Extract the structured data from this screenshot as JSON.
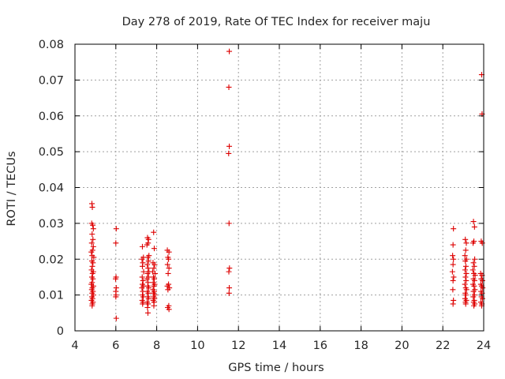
{
  "chart_data": {
    "type": "scatter",
    "title": "Day 278 of 2019, Rate Of TEC Index for receiver maju",
    "xlabel": "GPS time / hours",
    "ylabel": "ROTI / TECUs",
    "xlim": [
      4,
      24
    ],
    "ylim": [
      0,
      0.08
    ],
    "x_ticks": [
      4,
      6,
      8,
      10,
      12,
      14,
      16,
      18,
      20,
      22,
      24
    ],
    "y_ticks": [
      0,
      0.01,
      0.02,
      0.03,
      0.04,
      0.05,
      0.06,
      0.07,
      0.08
    ],
    "x_tick_labels": [
      "4",
      "6",
      "8",
      "10",
      "12",
      "14",
      "16",
      "18",
      "20",
      "22",
      "24"
    ],
    "y_tick_labels": [
      "0",
      "0.01",
      "0.02",
      "0.03",
      "0.04",
      "0.05",
      "0.06",
      "0.07",
      "0.08"
    ],
    "grid": true,
    "marker": "+",
    "color": "#dd0000",
    "series": [
      {
        "name": "ROTI",
        "points": [
          [
            4.83,
            0.0355
          ],
          [
            4.85,
            0.0345
          ],
          [
            4.82,
            0.03
          ],
          [
            4.87,
            0.0295
          ],
          [
            4.9,
            0.0285
          ],
          [
            4.84,
            0.027
          ],
          [
            4.88,
            0.0255
          ],
          [
            4.82,
            0.0245
          ],
          [
            4.9,
            0.0235
          ],
          [
            4.86,
            0.0225
          ],
          [
            4.8,
            0.022
          ],
          [
            4.84,
            0.021
          ],
          [
            4.92,
            0.0205
          ],
          [
            4.83,
            0.0195
          ],
          [
            4.88,
            0.019
          ],
          [
            4.85,
            0.018
          ],
          [
            4.81,
            0.017
          ],
          [
            4.9,
            0.0165
          ],
          [
            4.86,
            0.016
          ],
          [
            4.83,
            0.015
          ],
          [
            4.88,
            0.0145
          ],
          [
            4.84,
            0.0135
          ],
          [
            4.8,
            0.013
          ],
          [
            4.9,
            0.0125
          ],
          [
            4.85,
            0.012
          ],
          [
            4.82,
            0.0115
          ],
          [
            4.88,
            0.011
          ],
          [
            4.84,
            0.0105
          ],
          [
            4.9,
            0.01
          ],
          [
            4.83,
            0.0095
          ],
          [
            4.86,
            0.009
          ],
          [
            4.81,
            0.0085
          ],
          [
            4.88,
            0.008
          ],
          [
            4.85,
            0.0075
          ],
          [
            4.84,
            0.007
          ],
          [
            6.02,
            0.0285
          ],
          [
            6.0,
            0.0245
          ],
          [
            6.01,
            0.015
          ],
          [
            5.99,
            0.0145
          ],
          [
            6.02,
            0.012
          ],
          [
            6.0,
            0.011
          ],
          [
            6.01,
            0.01
          ],
          [
            6.0,
            0.0095
          ],
          [
            6.02,
            0.0035
          ],
          [
            7.3,
            0.0235
          ],
          [
            7.35,
            0.0205
          ],
          [
            7.28,
            0.02
          ],
          [
            7.32,
            0.019
          ],
          [
            7.3,
            0.018
          ],
          [
            7.36,
            0.0165
          ],
          [
            7.29,
            0.015
          ],
          [
            7.33,
            0.014
          ],
          [
            7.3,
            0.013
          ],
          [
            7.35,
            0.0125
          ],
          [
            7.28,
            0.012
          ],
          [
            7.32,
            0.011
          ],
          [
            7.3,
            0.01
          ],
          [
            7.34,
            0.0095
          ],
          [
            7.29,
            0.0085
          ],
          [
            7.33,
            0.008
          ],
          [
            7.31,
            0.0075
          ],
          [
            7.55,
            0.026
          ],
          [
            7.6,
            0.0255
          ],
          [
            7.58,
            0.0245
          ],
          [
            7.52,
            0.024
          ],
          [
            7.62,
            0.021
          ],
          [
            7.56,
            0.0205
          ],
          [
            7.6,
            0.0195
          ],
          [
            7.54,
            0.0185
          ],
          [
            7.58,
            0.0175
          ],
          [
            7.62,
            0.0165
          ],
          [
            7.55,
            0.016
          ],
          [
            7.6,
            0.015
          ],
          [
            7.52,
            0.0145
          ],
          [
            7.58,
            0.0135
          ],
          [
            7.56,
            0.0125
          ],
          [
            7.61,
            0.012
          ],
          [
            7.54,
            0.011
          ],
          [
            7.59,
            0.0105
          ],
          [
            7.56,
            0.0095
          ],
          [
            7.6,
            0.009
          ],
          [
            7.53,
            0.008
          ],
          [
            7.58,
            0.0075
          ],
          [
            7.55,
            0.0065
          ],
          [
            7.57,
            0.005
          ],
          [
            7.85,
            0.0275
          ],
          [
            7.88,
            0.023
          ],
          [
            7.82,
            0.019
          ],
          [
            7.9,
            0.0185
          ],
          [
            7.86,
            0.0175
          ],
          [
            7.8,
            0.0165
          ],
          [
            7.92,
            0.016
          ],
          [
            7.84,
            0.015
          ],
          [
            7.88,
            0.0145
          ],
          [
            7.83,
            0.0135
          ],
          [
            7.9,
            0.013
          ],
          [
            7.86,
            0.0125
          ],
          [
            7.82,
            0.0115
          ],
          [
            7.88,
            0.011
          ],
          [
            7.84,
            0.0105
          ],
          [
            7.91,
            0.01
          ],
          [
            7.85,
            0.0095
          ],
          [
            7.89,
            0.009
          ],
          [
            7.83,
            0.0085
          ],
          [
            7.87,
            0.008
          ],
          [
            7.86,
            0.007
          ],
          [
            8.52,
            0.0225
          ],
          [
            8.6,
            0.022
          ],
          [
            8.55,
            0.0205
          ],
          [
            8.58,
            0.02
          ],
          [
            8.53,
            0.0185
          ],
          [
            8.6,
            0.0175
          ],
          [
            8.56,
            0.016
          ],
          [
            8.58,
            0.013
          ],
          [
            8.52,
            0.0125
          ],
          [
            8.62,
            0.012
          ],
          [
            8.55,
            0.0115
          ],
          [
            8.59,
            0.007
          ],
          [
            8.54,
            0.0065
          ],
          [
            8.6,
            0.006
          ],
          [
            11.55,
            0.078
          ],
          [
            11.53,
            0.068
          ],
          [
            11.55,
            0.0515
          ],
          [
            11.52,
            0.0495
          ],
          [
            11.54,
            0.03
          ],
          [
            11.56,
            0.0175
          ],
          [
            11.53,
            0.0165
          ],
          [
            11.55,
            0.012
          ],
          [
            11.54,
            0.0105
          ],
          [
            22.52,
            0.0285
          ],
          [
            22.5,
            0.024
          ],
          [
            22.48,
            0.021
          ],
          [
            22.52,
            0.02
          ],
          [
            22.5,
            0.0185
          ],
          [
            22.47,
            0.0165
          ],
          [
            22.53,
            0.015
          ],
          [
            22.5,
            0.014
          ],
          [
            22.49,
            0.0115
          ],
          [
            22.52,
            0.0085
          ],
          [
            22.5,
            0.0075
          ],
          [
            23.1,
            0.0255
          ],
          [
            23.15,
            0.0245
          ],
          [
            23.12,
            0.0225
          ],
          [
            23.08,
            0.021
          ],
          [
            23.16,
            0.02
          ],
          [
            23.1,
            0.0195
          ],
          [
            23.13,
            0.018
          ],
          [
            23.09,
            0.017
          ],
          [
            23.15,
            0.016
          ],
          [
            23.11,
            0.015
          ],
          [
            23.14,
            0.014
          ],
          [
            23.08,
            0.013
          ],
          [
            23.12,
            0.012
          ],
          [
            23.16,
            0.0115
          ],
          [
            23.1,
            0.0105
          ],
          [
            23.13,
            0.01
          ],
          [
            23.09,
            0.009
          ],
          [
            23.15,
            0.0085
          ],
          [
            23.11,
            0.008
          ],
          [
            23.12,
            0.0075
          ],
          [
            23.5,
            0.0305
          ],
          [
            23.55,
            0.029
          ],
          [
            23.52,
            0.025
          ],
          [
            23.48,
            0.0245
          ],
          [
            23.56,
            0.02
          ],
          [
            23.5,
            0.019
          ],
          [
            23.54,
            0.018
          ],
          [
            23.47,
            0.017
          ],
          [
            23.52,
            0.016
          ],
          [
            23.58,
            0.0155
          ],
          [
            23.5,
            0.0145
          ],
          [
            23.55,
            0.014
          ],
          [
            23.48,
            0.013
          ],
          [
            23.53,
            0.0125
          ],
          [
            23.57,
            0.0115
          ],
          [
            23.5,
            0.011
          ],
          [
            23.55,
            0.01
          ],
          [
            23.49,
            0.0095
          ],
          [
            23.54,
            0.0085
          ],
          [
            23.51,
            0.008
          ],
          [
            23.56,
            0.0075
          ],
          [
            23.52,
            0.007
          ],
          [
            23.9,
            0.0715
          ],
          [
            23.92,
            0.0605
          ],
          [
            23.88,
            0.025
          ],
          [
            23.93,
            0.0245
          ],
          [
            23.85,
            0.016
          ],
          [
            23.92,
            0.0155
          ],
          [
            23.88,
            0.0145
          ],
          [
            23.94,
            0.014
          ],
          [
            23.86,
            0.013
          ],
          [
            23.9,
            0.0125
          ],
          [
            23.95,
            0.012
          ],
          [
            23.87,
            0.011
          ],
          [
            23.92,
            0.0105
          ],
          [
            23.89,
            0.0095
          ],
          [
            23.94,
            0.009
          ],
          [
            23.86,
            0.008
          ],
          [
            23.91,
            0.0075
          ],
          [
            23.9,
            0.007
          ]
        ]
      }
    ]
  }
}
